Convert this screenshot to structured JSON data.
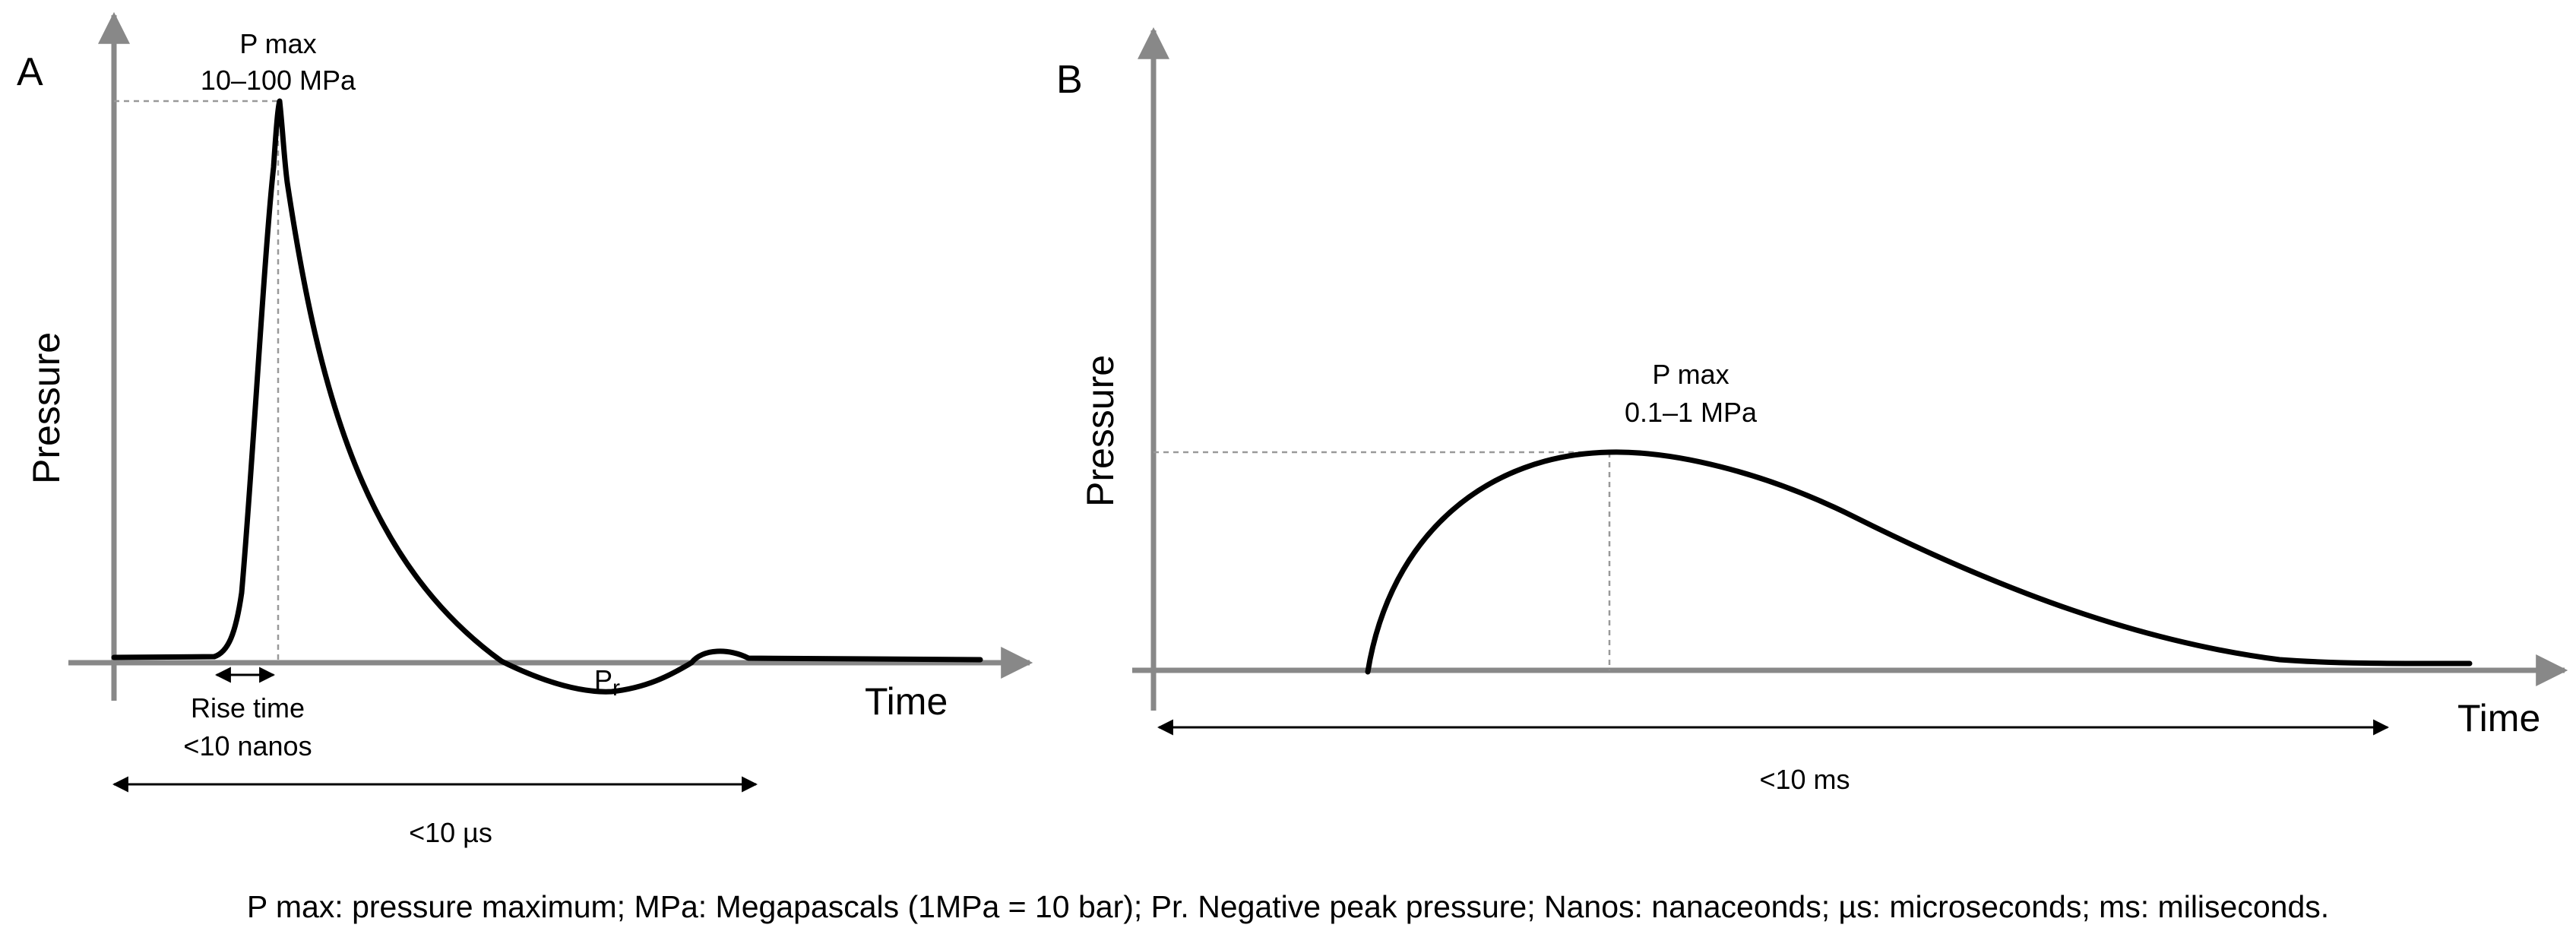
{
  "colors": {
    "axis": "#888888",
    "curve": "#000000",
    "guide": "#999999",
    "text": "#000000"
  },
  "panel_a": {
    "letter": "A",
    "y_axis_label": "Pressure",
    "x_axis_label": "Time",
    "pmax_title": "P max",
    "pmax_value": "10–100 MPa",
    "rise_time_label": "Rise time",
    "rise_time_value": "<10 nanos",
    "negative_peak_main": "P",
    "negative_peak_sub": "r",
    "duration_label": "<10 µs"
  },
  "panel_b": {
    "letter": "B",
    "y_axis_label": "Pressure",
    "x_axis_label": "Time",
    "pmax_title": "P max",
    "pmax_value": "0.1–1 MPa",
    "duration_label": "<10 ms"
  },
  "caption": "P max: pressure maximum; MPa: Megapascals (1MPa = 10 bar); Pr. Negative peak pressure; Nanos: nanaceonds; µs: microseconds; ms: miliseconds."
}
